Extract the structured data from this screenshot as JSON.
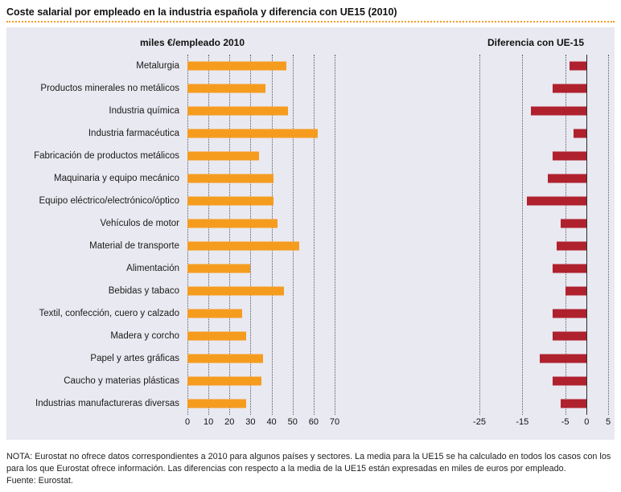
{
  "title": "Coste salarial por empleado en la industria española y diferencia con UE15 (2010)",
  "note": "NOTA: Eurostat no ofrece datos correspondientes a 2010 para algunos países y sectores. La media para la UE15 se ha calculado en todos los casos con los para los que Eurostat ofrece información. Las diferencias con respecto a la media de la UE15 están expresadas en miles de euros por empleado.",
  "source": "Fuente: Eurostat.",
  "colors": {
    "left_bar": "#F59C1F",
    "right_bar": "#B0212E",
    "panel_bg": "#E9E9F1",
    "title_rule": "#F59C1F",
    "gridline": "#5a5a66",
    "zero_line": "#2b2b2b"
  },
  "chart_data": [
    {
      "type": "bar",
      "orientation": "horizontal",
      "title": "miles €/empleado 2010",
      "categories": [
        "Metalurgia",
        "Productos minerales no metálicos",
        "Industria química",
        "Industria farmacéutica",
        "Fabricación de productos metálicos",
        "Maquinaria y equipo mecánico",
        "Equipo eléctrico/electrónico/óptico",
        "Vehículos de motor",
        "Material de transporte",
        "Alimentación",
        "Bebidas y tabaco",
        "Textil, confección, cuero y calzado",
        "Madera y corcho",
        "Papel y artes gráficas",
        "Caucho y materias plásticas",
        "Industrias manufactureras diversas"
      ],
      "values": [
        47,
        37,
        48,
        62,
        34,
        41,
        41,
        43,
        53,
        30,
        46,
        26,
        28,
        36,
        35,
        28
      ],
      "xlim": [
        0,
        70
      ],
      "xticks": [
        0,
        10,
        20,
        30,
        40,
        50,
        60,
        70
      ],
      "bar_color": "#F59C1F",
      "grid": true,
      "legend": "none"
    },
    {
      "type": "bar",
      "orientation": "horizontal",
      "title": "Diferencia con UE-15",
      "categories": [
        "Metalurgia",
        "Productos minerales no metálicos",
        "Industria química",
        "Industria farmacéutica",
        "Fabricación de productos metálicos",
        "Maquinaria y equipo mecánico",
        "Equipo eléctrico/electrónico/óptico",
        "Vehículos de motor",
        "Material de transporte",
        "Alimentación",
        "Bebidas y tabaco",
        "Textil, confección, cuero y calzado",
        "Madera y corcho",
        "Papel y artes gráficas",
        "Caucho y materias plásticas",
        "Industrias manufactureras diversas"
      ],
      "values": [
        -4,
        -8,
        -13,
        -3,
        -8,
        -9,
        -14,
        -6,
        -7,
        -8,
        -5,
        -8,
        -8,
        -11,
        -8,
        -6
      ],
      "xlim": [
        -25,
        5
      ],
      "xticks": [
        -25,
        -15,
        -5,
        0,
        5
      ],
      "bar_color": "#B0212E",
      "grid": true,
      "zero_line": true,
      "legend": "none"
    }
  ]
}
